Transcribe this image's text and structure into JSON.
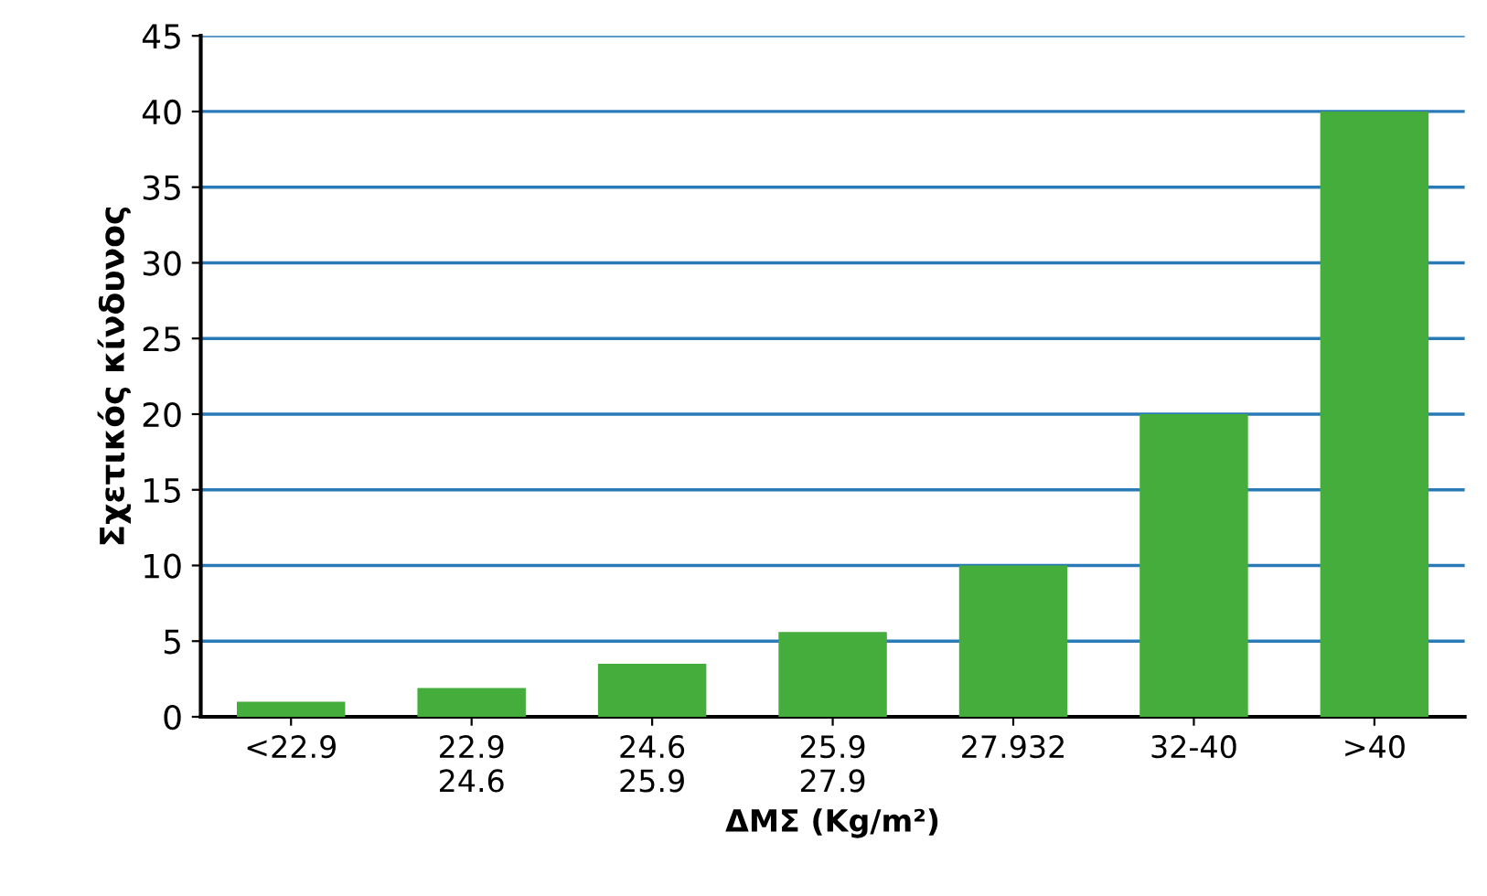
{
  "chart_data": {
    "type": "bar",
    "xlabel": "ΔΜΣ (Kg/m²)",
    "ylabel": "Σχετικός κίνδυνος",
    "categories": [
      "<22.9",
      "22.9\n24.6",
      "24.6\n25.9",
      "25.9\n27.9",
      "27.932",
      "32-40",
      ">40"
    ],
    "values": [
      1,
      1.9,
      3.5,
      5.6,
      10,
      20,
      40
    ],
    "color": "#44ad3c",
    "ylim": [
      0,
      45
    ],
    "yticks": [
      0,
      5,
      10,
      15,
      20,
      25,
      30,
      35,
      40,
      45
    ],
    "grid": "y"
  }
}
